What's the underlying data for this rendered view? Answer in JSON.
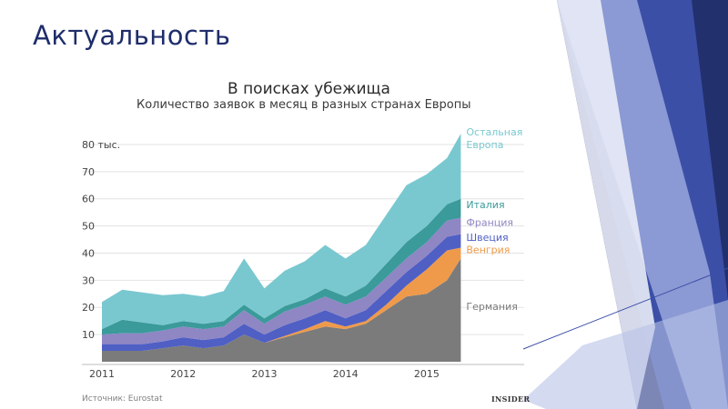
{
  "slide": {
    "title": "Актуальность"
  },
  "colors": {
    "deco_dark": "#23306e",
    "deco_mid": "#3b4fa7",
    "deco_light": "#b8c1e6",
    "deco_white": "#e9ecf7"
  },
  "footer": {
    "source": "Источник: Eurostat",
    "brand": "INSIDER"
  },
  "chart_data": {
    "type": "area",
    "stacked": true,
    "title": "В поисках убежища",
    "subtitle": "Количество заявок в месяц в разных странах Европы",
    "xlabel": "",
    "ylabel": "",
    "xlim": [
      2011.0,
      2016.2
    ],
    "ylim": [
      0,
      85
    ],
    "x_ticks": [
      2011,
      2012,
      2013,
      2014,
      2015
    ],
    "y_ticks": [
      {
        "value": 10,
        "label": "10"
      },
      {
        "value": 20,
        "label": "20"
      },
      {
        "value": 30,
        "label": "30"
      },
      {
        "value": 40,
        "label": "40"
      },
      {
        "value": 50,
        "label": "50"
      },
      {
        "value": 60,
        "label": "60"
      },
      {
        "value": 70,
        "label": "70"
      },
      {
        "value": 80,
        "label": "80 тыс."
      }
    ],
    "grid": true,
    "legend_position": "right",
    "x": [
      2011.0,
      2011.25,
      2011.5,
      2011.75,
      2012.0,
      2012.25,
      2012.5,
      2012.75,
      2013.0,
      2013.25,
      2013.5,
      2013.75,
      2014.0,
      2014.25,
      2014.5,
      2014.75,
      2015.0,
      2015.25,
      2015.42
    ],
    "series": [
      {
        "name": "Германия",
        "color": "#7b7b7b",
        "values": [
          4,
          4,
          4,
          5,
          6,
          5,
          6,
          10,
          7,
          9,
          11,
          13,
          12,
          14,
          19,
          24,
          25,
          30,
          38
        ]
      },
      {
        "name": "Венгрия",
        "color": "#ef9a4a",
        "values": [
          0,
          0,
          0,
          0,
          0,
          0,
          0,
          0,
          0,
          0.5,
          1,
          2,
          1,
          1,
          2,
          4,
          9,
          11,
          4
        ]
      },
      {
        "name": "Швеция",
        "color": "#4f5fc4",
        "values": [
          2.5,
          2.5,
          2.5,
          2.5,
          3,
          3,
          3,
          4,
          3,
          4,
          4,
          4,
          3,
          4,
          5,
          5,
          5,
          5,
          5
        ]
      },
      {
        "name": "Франция",
        "color": "#8f86c4",
        "values": [
          3.5,
          4,
          4,
          4,
          4,
          4,
          4,
          5,
          4,
          5,
          5,
          5,
          5,
          5,
          5,
          5,
          5,
          6,
          6
        ]
      },
      {
        "name": "Италия",
        "color": "#3b9a9a",
        "values": [
          2,
          5,
          4,
          2,
          2,
          2,
          2,
          2,
          2,
          2,
          2,
          3,
          3,
          4,
          5,
          6,
          6,
          6,
          7
        ]
      },
      {
        "name": "Остальная\nЕвропа",
        "color": "#79c8d0",
        "values": [
          10,
          11,
          11,
          11,
          10,
          10,
          11,
          17,
          11,
          13,
          14,
          16,
          14,
          15,
          18,
          21,
          19,
          17,
          24
        ]
      }
    ]
  }
}
